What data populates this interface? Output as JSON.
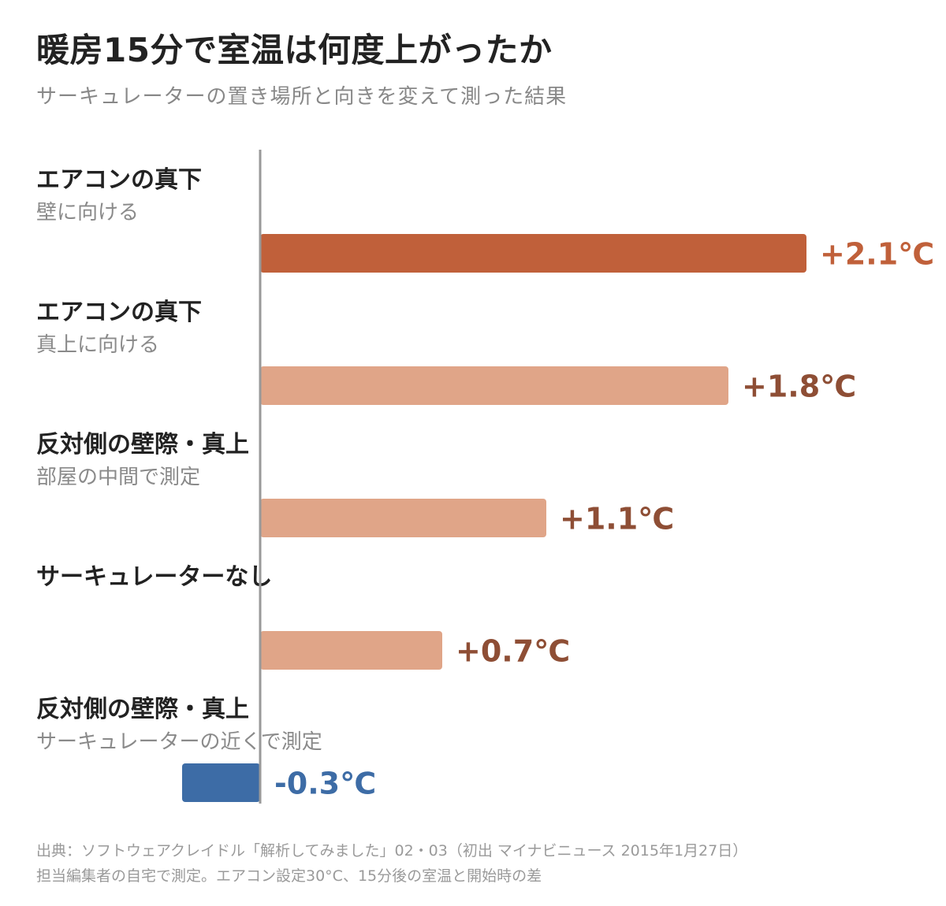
{
  "title": "暖房15分で室温は何度上がったか",
  "subtitle": "サーキュレーターの置き場所と向きを変えて測った結果",
  "chart_data": {
    "type": "bar",
    "orientation": "horizontal",
    "categories": [
      {
        "title": "エアコンの真下",
        "subtitle": "壁に向ける",
        "value": 2.1,
        "label": "+2.1℃"
      },
      {
        "title": "エアコンの真下",
        "subtitle": "真上に向ける",
        "value": 1.8,
        "label": "+1.8℃"
      },
      {
        "title": "反対側の壁際・真上",
        "subtitle": "部屋の中間で測定",
        "value": 1.1,
        "label": "+1.1℃"
      },
      {
        "title": "サーキュレーターなし",
        "subtitle": "",
        "value": 0.7,
        "label": "+0.7℃"
      },
      {
        "title": "反対側の壁際・真上",
        "subtitle": "サーキュレーターの近くで測定",
        "value": -0.3,
        "label": "-0.3℃"
      }
    ],
    "colors": {
      "highlight": "#C0603A",
      "positive": "#E0A588",
      "negative": "#3D6CA6",
      "highlight_label": "#C0603A",
      "positive_label": "#8E4E35",
      "negative_label": "#3D6CA6",
      "axis": "#999999"
    }
  },
  "source": {
    "line1": "出典：ソフトウェアクレイドル「解析してみました」02・03（初出 マイナビニュース 2015年1月27日）",
    "line2": "担当編集者の自宅で測定。エアコン設定30°C、15分後の室温と開始時の差"
  }
}
